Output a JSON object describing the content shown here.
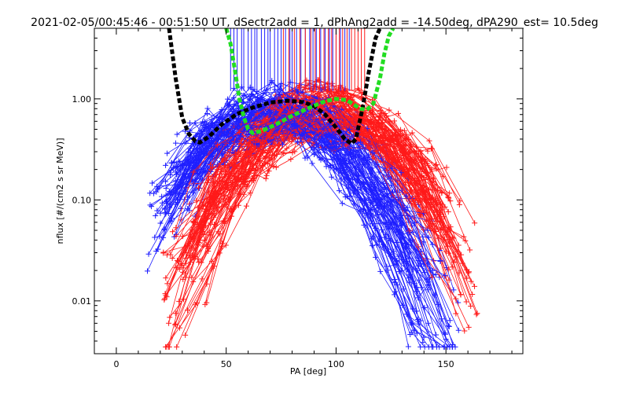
{
  "chart_data": {
    "type": "scatter",
    "title": "2021-02-05/00:45:46 - 00:51:50 UT, dSectr2add = 1, dPhAng2add = -14.50deg, dPA290_est=  10.5deg",
    "xlabel": "PA [deg]",
    "ylabel": "nflux [#/(cm2 s sr MeV)]",
    "xlim": [
      -10,
      185
    ],
    "ylim": [
      0.003,
      5.0
    ],
    "yscale": "log",
    "x_ticks": [
      0,
      50,
      100,
      150
    ],
    "x_tick_labels": [
      "0",
      "50",
      "100",
      "150"
    ],
    "y_ticks": [
      0.01,
      0.1,
      1.0
    ],
    "y_tick_labels": [
      "0.01",
      "0.10",
      "1.00"
    ],
    "grid": false,
    "colors": {
      "blue": "#1f1fff",
      "red": "#ff1a1a",
      "fit_black": "#000000",
      "fit_green": "#22dd22"
    },
    "black_curve": {
      "x": [
        24,
        27,
        30,
        33,
        36,
        38,
        42,
        48,
        55,
        62,
        70,
        78,
        85,
        90,
        95,
        100,
        104,
        107,
        109,
        112,
        115,
        118,
        120
      ],
      "y": [
        5.0,
        1.6,
        0.65,
        0.45,
        0.38,
        0.37,
        0.42,
        0.56,
        0.71,
        0.82,
        0.92,
        0.96,
        0.93,
        0.85,
        0.7,
        0.52,
        0.4,
        0.36,
        0.4,
        0.8,
        1.9,
        4.0,
        5.0
      ]
    },
    "green_curve": {
      "x": [
        50,
        52,
        54,
        56,
        58,
        60,
        62,
        66,
        72,
        80,
        88,
        95,
        100,
        105,
        108,
        111,
        114,
        117,
        120,
        122,
        124,
        126
      ],
      "y": [
        5.0,
        3.5,
        1.9,
        1.0,
        0.66,
        0.5,
        0.46,
        0.48,
        0.55,
        0.68,
        0.82,
        0.95,
        1.0,
        0.97,
        0.88,
        0.8,
        0.78,
        0.9,
        1.6,
        2.8,
        4.2,
        5.0
      ]
    },
    "vertical_lines": {
      "blue_x": [
        52,
        53.5,
        55,
        57,
        58,
        60,
        61.5,
        63,
        64,
        66,
        67.5,
        69,
        70,
        72,
        73.5,
        75,
        77,
        79,
        80,
        82,
        84,
        86,
        88,
        89.5,
        91,
        93,
        95,
        97,
        98.5,
        100,
        102,
        104,
        106
      ],
      "red_x": [
        76,
        78.5,
        81,
        83.5,
        86,
        88.5,
        90.5,
        92.5,
        94.5,
        96.5,
        98,
        100,
        101.5,
        103,
        105,
        107,
        108.5,
        110,
        111.5,
        113
      ],
      "y_bottom": 1.2
    },
    "scatter_seed": 12345,
    "scatter_series_count": {
      "blue": 95,
      "red": 95
    }
  }
}
